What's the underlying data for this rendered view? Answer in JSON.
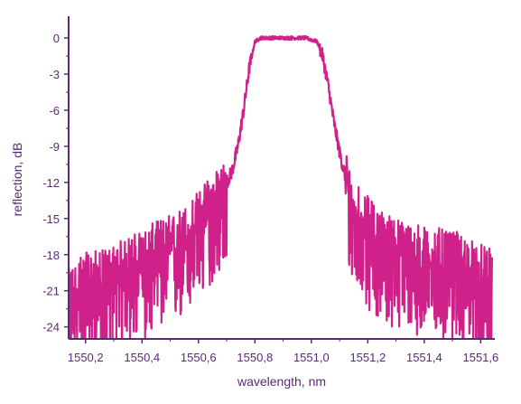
{
  "chart_data": {
    "type": "line",
    "xlabel": "wavelength, nm",
    "ylabel": "reflection, dB",
    "xlim": [
      1550.14,
      1551.65
    ],
    "ylim": [
      -25,
      1.5
    ],
    "x_ticks": [
      "1550,2",
      "1550,4",
      "1550,6",
      "1550,8",
      "1551,0",
      "1551,2",
      "1551,4",
      "1551,6"
    ],
    "x_tick_values": [
      1550.2,
      1550.4,
      1550.6,
      1550.8,
      1551.0,
      1551.2,
      1551.4,
      1551.6
    ],
    "y_ticks": [
      "0",
      "-3",
      "-6",
      "-9",
      "-12",
      "-15",
      "-18",
      "-21",
      "-24"
    ],
    "y_tick_values": [
      0,
      -3,
      -6,
      -9,
      -12,
      -15,
      -18,
      -21,
      -24
    ],
    "grid": false,
    "line_color": "#d0208a",
    "axis_color": "#5a2a78",
    "series": [
      {
        "x": [
          1550.14,
          1550.18,
          1550.22,
          1550.26,
          1550.3,
          1550.34,
          1550.38,
          1550.42,
          1550.46,
          1550.5,
          1550.54,
          1550.58,
          1550.62,
          1550.66,
          1550.7,
          1550.72,
          1550.74,
          1550.76,
          1550.78,
          1550.8,
          1550.82,
          1550.86,
          1550.9,
          1550.94,
          1550.98,
          1551.02,
          1551.04,
          1551.06,
          1551.08,
          1551.1,
          1551.12,
          1551.14,
          1551.16,
          1551.2,
          1551.24,
          1551.28,
          1551.32,
          1551.36,
          1551.4,
          1551.44,
          1551.48,
          1551.52,
          1551.56,
          1551.6,
          1551.64
        ],
        "y": [
          -21.5,
          -20.5,
          -20.0,
          -20.0,
          -19.5,
          -19.0,
          -18.5,
          -18.0,
          -17.5,
          -17.0,
          -16.5,
          -15.5,
          -14.5,
          -13.0,
          -12.0,
          -11.0,
          -9.0,
          -6.0,
          -2.5,
          -0.3,
          0.0,
          0.0,
          0.0,
          0.0,
          0.0,
          -0.3,
          -1.5,
          -4.0,
          -7.0,
          -9.5,
          -11.5,
          -13.0,
          -14.0,
          -15.5,
          -16.5,
          -17.0,
          -17.5,
          -17.5,
          -18.0,
          -18.0,
          -18.5,
          -18.5,
          -19.0,
          -19.5,
          -20.0
        ]
      }
    ]
  }
}
